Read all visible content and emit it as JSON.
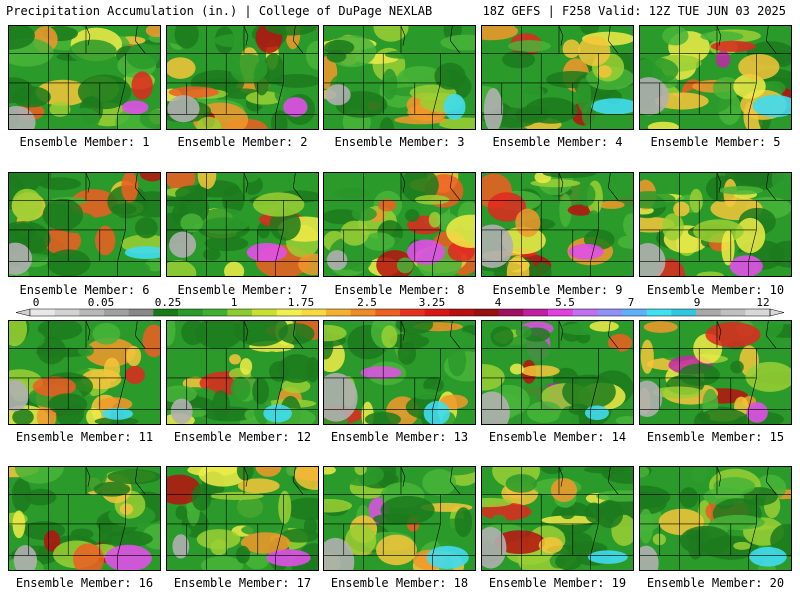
{
  "header": {
    "left": "Precipitation Accumulation (in.) | College of DuPage NEXLAB",
    "right": "18Z GEFS | F258 Valid: 12Z TUE JUN 03 2025"
  },
  "panels": [
    {
      "label": "Ensemble Member: 1"
    },
    {
      "label": "Ensemble Member: 2"
    },
    {
      "label": "Ensemble Member: 3"
    },
    {
      "label": "Ensemble Member: 4"
    },
    {
      "label": "Ensemble Member: 5"
    },
    {
      "label": "Ensemble Member: 6"
    },
    {
      "label": "Ensemble Member: 7"
    },
    {
      "label": "Ensemble Member: 8"
    },
    {
      "label": "Ensemble Member: 9"
    },
    {
      "label": "Ensemble Member: 10"
    },
    {
      "label": "Ensemble Member: 11"
    },
    {
      "label": "Ensemble Member: 12"
    },
    {
      "label": "Ensemble Member: 13"
    },
    {
      "label": "Ensemble Member: 14"
    },
    {
      "label": "Ensemble Member: 15"
    },
    {
      "label": "Ensemble Member: 16"
    },
    {
      "label": "Ensemble Member: 17"
    },
    {
      "label": "Ensemble Member: 18"
    },
    {
      "label": "Ensemble Member: 19"
    },
    {
      "label": "Ensemble Member: 20"
    }
  ],
  "legend": {
    "labels": [
      "0",
      "0.05",
      "0.25",
      "1",
      "1.75",
      "2.5",
      "3.25",
      "4",
      "5.5",
      "7",
      "9",
      "12"
    ],
    "colors": [
      "#e8e8e8",
      "#d2d2d2",
      "#b8b8b8",
      "#a0a0a0",
      "#888888",
      "#1a7a1a",
      "#2a9a2a",
      "#40b030",
      "#8ccc30",
      "#c8e030",
      "#f0f050",
      "#f8d840",
      "#f4b030",
      "#f08c28",
      "#ec6020",
      "#e83020",
      "#d81818",
      "#b81010",
      "#981010",
      "#a01060",
      "#c020a0",
      "#e040e0",
      "#c070f0",
      "#9090f8",
      "#60b0f8",
      "#40e0f0",
      "#30c8e0",
      "#a8a8a8",
      "#c0c0c0",
      "#d8d8d8"
    ]
  }
}
